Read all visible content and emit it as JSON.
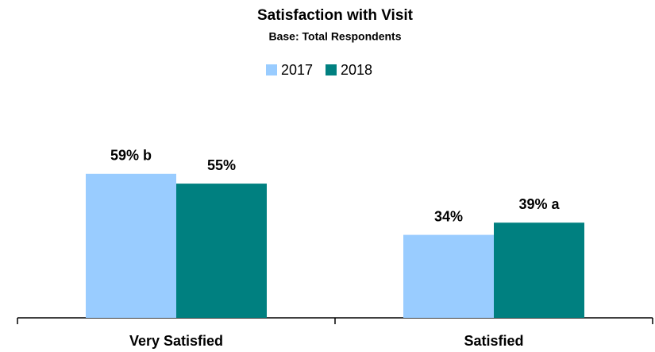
{
  "chart_data": {
    "type": "bar",
    "title": "Satisfaction with Visit",
    "subtitle": "Base:  Total Respondents",
    "categories": [
      "Very Satisfied",
      "Satisfied"
    ],
    "series": [
      {
        "name": "2017",
        "color": "#99ccff",
        "values": [
          59,
          34
        ],
        "value_labels": [
          "59% b",
          "34%"
        ]
      },
      {
        "name": "2018",
        "color": "#008080",
        "values": [
          55,
          39
        ],
        "value_labels": [
          "55%",
          "39% a"
        ]
      }
    ],
    "ylim": [
      0,
      70
    ],
    "legend": "top"
  }
}
